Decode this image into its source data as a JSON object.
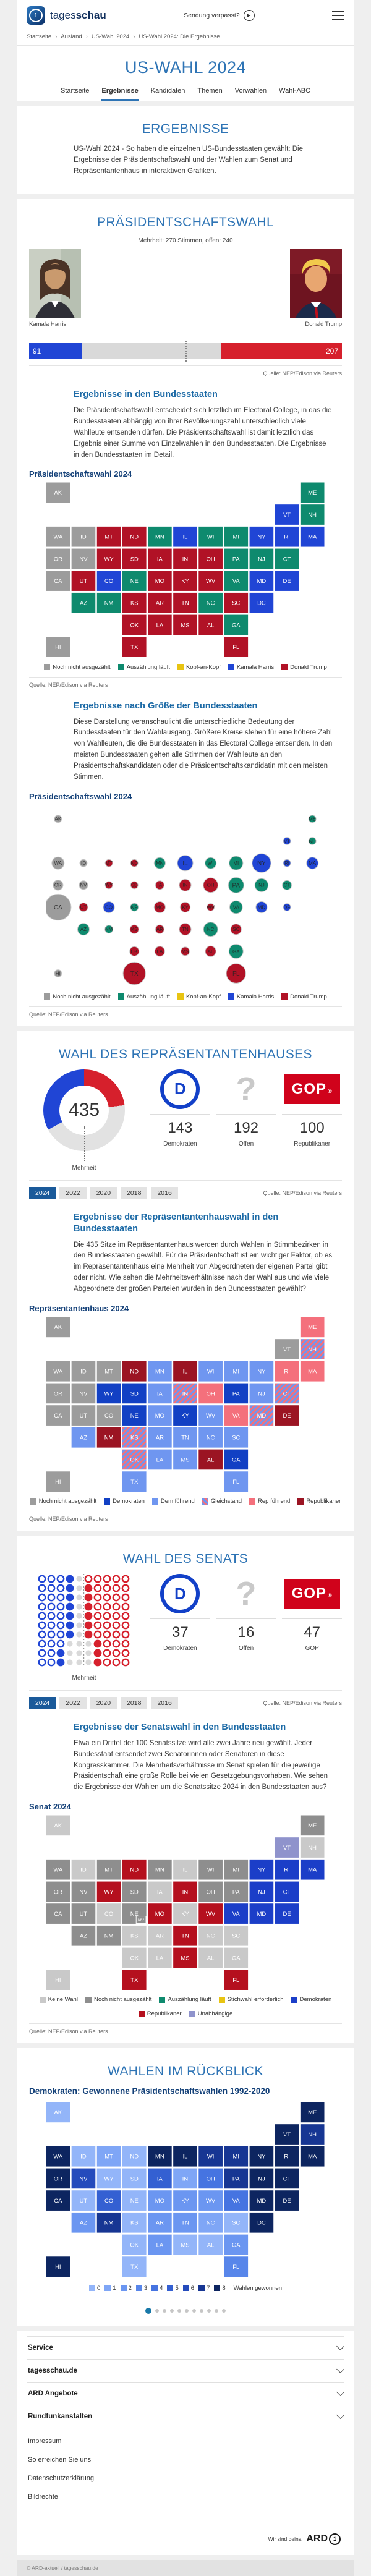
{
  "header": {
    "brand_tages": "tages",
    "brand_schau": "schau",
    "missed": "Sendung verpasst?"
  },
  "breadcrumb": [
    "Startseite",
    "Ausland",
    "US-Wahl 2024",
    "US-Wahl 2024: Die Ergebnisse"
  ],
  "hero": {
    "title": "US-WAHL 2024",
    "tabs": [
      "Startseite",
      "Ergebnisse",
      "Kandidaten",
      "Themen",
      "Vorwahlen",
      "Wahl-ABC"
    ],
    "active_tab": "Ergebnisse"
  },
  "intro": {
    "title": "ERGEBNISSE",
    "text": "US-Wahl 2024 - So haben die einzelnen US-Bundesstaaten gewählt: Die Ergebnisse der Präsidentschaftswahl und der Wahlen zum Senat und Repräsentantenhaus in interaktiven Grafiken."
  },
  "source": "Quelle: NEP/Edison via Reuters",
  "president": {
    "title": "PRÄSIDENTSCHAFTSWAHL",
    "majority_note": "Mehrheit: 270 Stimmen, offen: 240",
    "left_candidate": "Kamala Harris",
    "right_candidate": "Donald Trump",
    "states_heading": "Ergebnisse in den Bundesstaaten",
    "states_text": "Die Präsidentschaftswahl entscheidet sich letztlich im Electoral College, in das die Bundesstaaten abhängig von ihrer Bevölkerungszahl unterschiedlich viele Wahlleute entsenden dürfen. Die Präsidentschaftswahl ist damit letztlich das Ergebnis einer Summe von Einzelwahlen in den Bundesstaaten. Die Ergebnisse in den Bundesstaaten im Detail.",
    "map_label": "Präsidentschaftswahl 2024",
    "size_heading": "Ergebnisse nach Größe der Bundesstaaten",
    "size_text": "Diese Darstellung veranschaulicht die unterschiedliche Bedeutung der Bundesstaaten für den Wahlausgang. Größere Kreise stehen für eine höhere Zahl von Wahlleuten, die die Bundesstaaten in das Electoral College entsenden. In den meisten Bundesstaaten gehen alle Stimmen der Wahlleute an den Präsidentschaftskandidaten oder die Präsidentschaftskandidatin mit den meisten Stimmen."
  },
  "house": {
    "title": "WAHL DES REPRÄSENTANTENHAUSES",
    "majority_label": "Mehrheit",
    "stats": [
      {
        "logo": "dem",
        "value": "143",
        "label": "Demokraten"
      },
      {
        "logo": "open",
        "value": "192",
        "label": "Offen"
      },
      {
        "logo": "gop",
        "value": "100",
        "label": "Republikaner"
      }
    ],
    "years": [
      "2024",
      "2022",
      "2020",
      "2018",
      "2016"
    ],
    "active_year": "2024",
    "states_heading": "Ergebnisse der Repräsentantenhauswahl in den Bundesstaaten",
    "states_text": "Die 435 Sitze im Repräsentantenhaus werden durch Wahlen in Stimmbezirken in den Bundesstaaten gewählt. Für die Präsidentschaft ist ein wichtiger Faktor, ob es im Repräsentantenhaus eine Mehrheit von Abgeordneten der eigenen Partei gibt oder nicht. Wie sehen die Mehrheitsverhältnisse nach der Wahl aus und wie viele Abgeordnete der großen Parteien wurden in den Bundesstaaten gewählt?",
    "map_label": "Repräsentantenhaus 2024"
  },
  "senate": {
    "title": "WAHL DES SENATS",
    "majority_label": "Mehrheit",
    "stats": [
      {
        "logo": "dem",
        "value": "37",
        "label": "Demokraten"
      },
      {
        "logo": "open",
        "value": "16",
        "label": "Offen"
      },
      {
        "logo": "gop",
        "value": "47",
        "label": "GOP"
      }
    ],
    "years": [
      "2024",
      "2022",
      "2020",
      "2018",
      "2016"
    ],
    "active_year": "2024",
    "states_heading": "Ergebnisse der Senatswahl in den Bundesstaaten",
    "states_text": "Etwa ein Drittel der 100 Senatssitze wird alle zwei Jahre neu gewählt. Jeder Bundesstaat entsendet zwei Senatorinnen oder Senatoren in diese Kongresskammer. Die Mehrheitsverhältnisse im Senat spielen für die jeweilige Präsidentschaft eine große Rolle bei vielen Gesetzgebungsvorhaben. Wie sehen die Ergebnisse der Wahlen um die Senatssitze 2024 in den Bundesstaaten aus?",
    "map_label": "Senat 2024"
  },
  "retro": {
    "title": "WAHLEN IM RÜCKBLICK",
    "subtitle": "Demokraten: Gewonnene Präsidentschaftswahlen 1992-2020",
    "legend_label": "Wahlen gewonnen",
    "carousel_dots": 11
  },
  "footer": {
    "accordions": [
      "Service",
      "tagesschau.de",
      "ARD Angebote",
      "Rundfunkanstalten"
    ],
    "links": [
      "Impressum",
      "So erreichen Sie uns",
      "Datenschutzerklärung",
      "Bildrechte"
    ],
    "ard_claim": "Wir sind deins.",
    "ard": "ARD",
    "copyright": "© ARD-aktuell / tagesschau.de"
  },
  "chart_data": [
    {
      "id": "electoral-bar",
      "type": "bar",
      "total": 538,
      "majority": 270,
      "series": [
        {
          "name": "Kamala Harris",
          "value": 91,
          "color": "#2045d5"
        },
        {
          "name": "offen",
          "value": 240,
          "color": "#d9d9d9"
        },
        {
          "name": "Donald Trump",
          "value": 207,
          "color": "#d6202c"
        }
      ]
    },
    {
      "id": "pres-map",
      "type": "choropleth",
      "legend": [
        {
          "key": "open",
          "label": "Noch nicht ausgezählt",
          "color": "#9c9c9c"
        },
        {
          "key": "counting",
          "label": "Auszählung läuft",
          "color": "#0e8a6e"
        },
        {
          "key": "close",
          "label": "Kopf-an-Kopf",
          "color": "#e8c412"
        },
        {
          "key": "harris",
          "label": "Kamala Harris",
          "color": "#2045d5"
        },
        {
          "key": "trump",
          "label": "Donald Trump",
          "color": "#b11226"
        }
      ],
      "states": {
        "WA": "open",
        "OR": "open",
        "ID": "open",
        "NV": "open",
        "CA": "open",
        "AK": "open",
        "HI": "open",
        "MN": "counting",
        "WI": "counting",
        "MI": "counting",
        "PA": "counting",
        "NE": "counting",
        "AZ": "counting",
        "NM": "counting",
        "GA": "counting",
        "NC": "counting",
        "VA": "counting",
        "ME": "counting",
        "NH": "counting",
        "CT": "counting",
        "NJ": "counting",
        "CO": "harris",
        "IL": "harris",
        "NY": "harris",
        "VT": "harris",
        "MA": "harris",
        "RI": "harris",
        "DE": "harris",
        "MD": "harris",
        "DC": "harris",
        "MT": "trump",
        "ND": "trump",
        "SD": "trump",
        "WY": "trump",
        "UT": "trump",
        "KS": "trump",
        "OK": "trump",
        "TX": "trump",
        "IA": "trump",
        "MO": "trump",
        "AR": "trump",
        "LA": "trump",
        "MS": "trump",
        "AL": "trump",
        "TN": "trump",
        "KY": "trump",
        "IN": "trump",
        "OH": "trump",
        "WV": "trump",
        "SC": "trump",
        "FL": "trump"
      }
    },
    {
      "id": "pres-cartogram",
      "type": "bubble",
      "states_ref": "pres-map",
      "electoral_votes": {
        "CA": 54,
        "TX": 40,
        "FL": 30,
        "NY": 28,
        "PA": 19,
        "IL": 19,
        "OH": 17,
        "GA": 16,
        "NC": 16,
        "MI": 15,
        "NJ": 14,
        "VA": 13,
        "WA": 12,
        "AZ": 11,
        "IN": 11,
        "MA": 11,
        "TN": 11,
        "MD": 10,
        "MN": 10,
        "MO": 10,
        "WI": 10,
        "CO": 10,
        "AL": 9,
        "SC": 9,
        "KY": 8,
        "LA": 8,
        "OR": 8,
        "CT": 7,
        "OK": 7,
        "AR": 6,
        "IA": 6,
        "KS": 6,
        "MS": 6,
        "NV": 6,
        "UT": 6,
        "NE": 5,
        "NM": 5,
        "HI": 4,
        "ID": 4,
        "ME": 4,
        "MT": 4,
        "NH": 4,
        "RI": 4,
        "WV": 4,
        "AK": 3,
        "DE": 3,
        "ND": 3,
        "SD": 3,
        "VT": 3,
        "WY": 3
      }
    },
    {
      "id": "house-donut",
      "type": "donut",
      "total": 435,
      "segments": [
        {
          "label": "Republikaner",
          "value": 100,
          "color": "#d6202c"
        },
        {
          "label": "Offen",
          "value": 192,
          "color": "#e2e2e2"
        },
        {
          "label": "Demokraten",
          "value": 143,
          "color": "#2045d5"
        }
      ]
    },
    {
      "id": "house-map",
      "type": "choropleth",
      "legend": [
        {
          "key": "open",
          "label": "Noch nicht ausgezählt",
          "color": "#9c9c9c"
        },
        {
          "key": "dem",
          "label": "Demokraten",
          "color": "#1240c4"
        },
        {
          "key": "demlead",
          "label": "Dem führend",
          "color": "#6f96f0"
        },
        {
          "key": "tie",
          "label": "Gleichstand",
          "color": "stripes"
        },
        {
          "key": "replead",
          "label": "Rep führend",
          "color": "#f4707c"
        },
        {
          "key": "rep",
          "label": "Republikaner",
          "color": "#9b1423"
        }
      ],
      "states": {
        "WA": "open",
        "OR": "open",
        "ID": "open",
        "MT": "open",
        "NV": "open",
        "CA": "open",
        "UT": "open",
        "CO": "open",
        "AK": "open",
        "VT": "open",
        "HI": "open",
        "WY": "dem",
        "SD": "dem",
        "NE": "dem",
        "PA": "dem",
        "KY": "dem",
        "GA": "dem",
        "MN": "demlead",
        "WI": "demlead",
        "MI": "demlead",
        "IA": "demlead",
        "MO": "demlead",
        "AR": "demlead",
        "LA": "demlead",
        "MS": "demlead",
        "TX": "demlead",
        "AZ": "demlead",
        "NY": "demlead",
        "NC": "demlead",
        "SC": "demlead",
        "FL": "demlead",
        "WV": "demlead",
        "TN": "demlead",
        "NJ": "demlead",
        "KS": "tie",
        "OK": "tie",
        "IN": "tie",
        "CT": "tie",
        "NH": "tie",
        "MD": "tie",
        "ME": "replead",
        "OH": "replead",
        "VA": "replead",
        "RI": "replead",
        "MA": "replead",
        "ND": "rep",
        "NM": "rep",
        "IL": "rep",
        "AL": "rep",
        "DE": "rep"
      }
    },
    {
      "id": "senate-seats",
      "type": "seats",
      "rows": 10,
      "cols": 10,
      "majority": 50,
      "dem": 37,
      "open": 16,
      "rep": 47,
      "colors": {
        "dem": "#2045d5",
        "open": "#d9d9d9",
        "rep": "#d6202c"
      }
    },
    {
      "id": "senate-map",
      "type": "choropleth",
      "legend": [
        {
          "key": "nowahl",
          "label": "Keine Wahl",
          "color": "#c9c9c9"
        },
        {
          "key": "pending",
          "label": "Noch nicht ausgezählt",
          "color": "#8e8e8e"
        },
        {
          "key": "counting",
          "label": "Auszählung läuft",
          "color": "#0e8a6e"
        },
        {
          "key": "runoff",
          "label": "Stichwahl erforderlich",
          "color": "#e8c412"
        },
        {
          "key": "dem",
          "label": "Demokraten",
          "color": "#1b3ec8"
        },
        {
          "key": "rep",
          "label": "Republikaner",
          "color": "#b5101e"
        },
        {
          "key": "ind",
          "label": "Unabhängige",
          "color": "#8f93cc"
        }
      ],
      "states": {
        "ID": "nowahl",
        "CO": "nowahl",
        "KS": "nowahl",
        "IA": "nowahl",
        "IL": "nowahl",
        "KY": "nowahl",
        "NC": "nowahl",
        "SC": "nowahl",
        "GA": "nowahl",
        "AL": "nowahl",
        "AR": "nowahl",
        "LA": "nowahl",
        "OK": "nowahl",
        "NH": "nowahl",
        "AK": "nowahl",
        "HI": "nowahl",
        "WA": "pending",
        "OR": "pending",
        "CA": "pending",
        "NV": "pending",
        "MT": "pending",
        "UT": "pending",
        "AZ": "pending",
        "NM": "pending",
        "SD": "pending",
        "NE": "pending",
        "NE2": "pending",
        "MN": "pending",
        "WI": "pending",
        "MI": "pending",
        "OH": "pending",
        "PA": "pending",
        "ME": "pending",
        "NY": "dem",
        "NJ": "dem",
        "CT": "dem",
        "MA": "dem",
        "RI": "dem",
        "DE": "dem",
        "MD": "dem",
        "VA": "dem",
        "WY": "rep",
        "ND": "rep",
        "TX": "rep",
        "MO": "rep",
        "IN": "rep",
        "WV": "rep",
        "TN": "rep",
        "MS": "rep",
        "FL": "rep",
        "VT": "ind"
      }
    },
    {
      "id": "retro-map",
      "type": "choropleth",
      "scale": [
        "#93b5f9",
        "#7fa6f6",
        "#6b96f1",
        "#5886ea",
        "#4674e1",
        "#3460d2",
        "#254bbc",
        "#173693",
        "#0d2560"
      ],
      "legend_label": "Wahlen gewonnen",
      "values": {
        "WA": 8,
        "OR": 8,
        "CA": 8,
        "HI": 8,
        "MN": 8,
        "IL": 8,
        "NY": 8,
        "VT": 8,
        "MA": 8,
        "RI": 8,
        "CT": 8,
        "NJ": 8,
        "MD": 8,
        "DE": 8,
        "DC": 8,
        "ME": 8,
        "MI": 7,
        "WI": 7,
        "PA": 7,
        "NH": 7,
        "NM": 7,
        "NV": 6,
        "CO": 5,
        "IA": 5,
        "OH": 4,
        "VA": 4,
        "FL": 3,
        "AZ": 2,
        "AR": 2,
        "GA": 2,
        "KY": 2,
        "LA": 2,
        "TN": 2,
        "WV": 2,
        "MO": 2,
        "MT": 1,
        "IN": 1,
        "NC": 1,
        "AL": 0,
        "AK": 0,
        "ID": 0,
        "KS": 0,
        "MS": 0,
        "NE": 0,
        "ND": 0,
        "OK": 0,
        "SC": 0,
        "SD": 0,
        "TX": 0,
        "UT": 0,
        "WY": 0
      }
    }
  ]
}
